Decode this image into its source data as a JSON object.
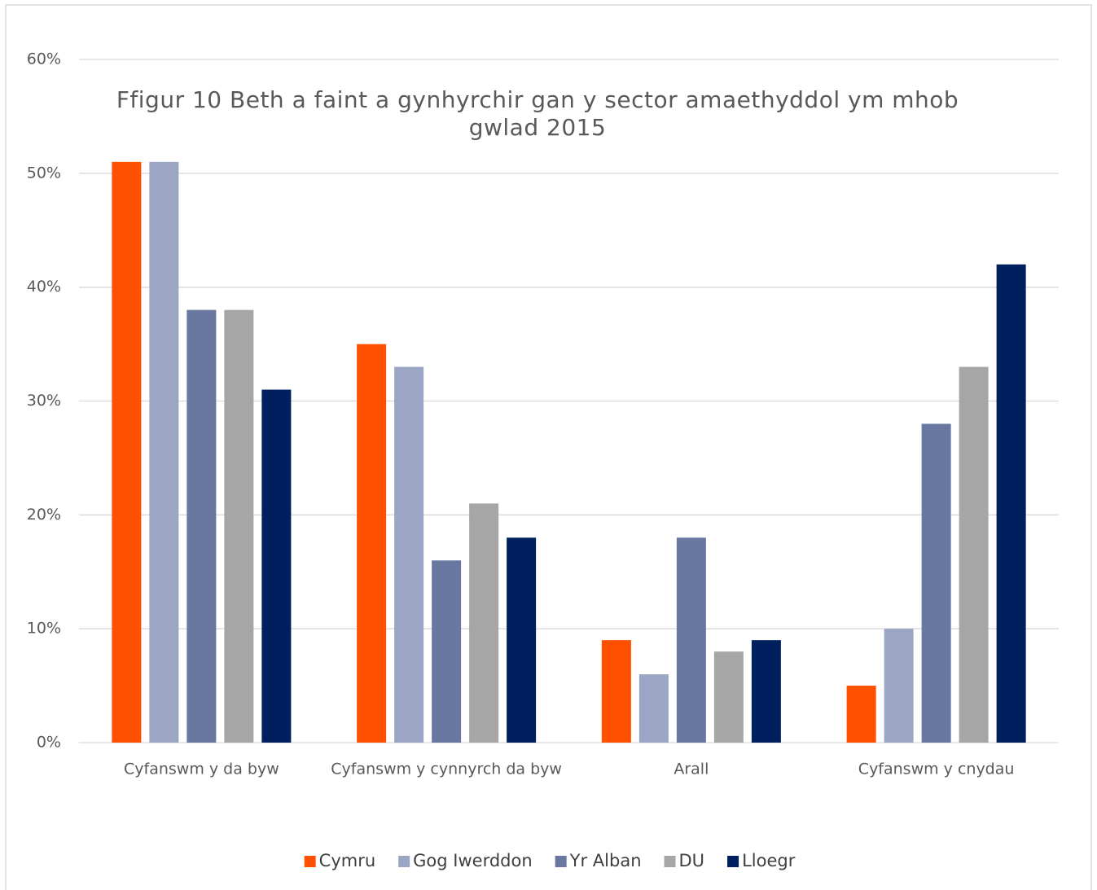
{
  "chart_data": {
    "type": "bar",
    "title": "Ffigur 10 Beth a faint a gynhyrchir gan y sector amaethyddol ym mhob gwlad 2015",
    "categories": [
      "Cyfanswm y da byw",
      "Cyfanswm y cynnyrch da byw",
      "Arall",
      "Cyfanswm y cnydau"
    ],
    "series": [
      {
        "name": "Cymru",
        "color": "#ff5000",
        "values": [
          51,
          35,
          9,
          5
        ]
      },
      {
        "name": "Gog Iwerddon",
        "color": "#9aa6c3",
        "values": [
          51,
          33,
          6,
          10
        ]
      },
      {
        "name": "Yr Alban",
        "color": "#6878a0",
        "values": [
          38,
          16,
          18,
          28
        ]
      },
      {
        "name": "DU",
        "color": "#a6a6a6",
        "values": [
          38,
          21,
          8,
          33
        ]
      },
      {
        "name": "Lloegr",
        "color": "#001f5f",
        "values": [
          31,
          18,
          9,
          42
        ]
      }
    ],
    "ylim": [
      0,
      60
    ],
    "yticks": [
      {
        "value": 0,
        "label": "0%"
      },
      {
        "value": 10,
        "label": "10%"
      },
      {
        "value": 20,
        "label": "20%"
      },
      {
        "value": 30,
        "label": "30%"
      },
      {
        "value": 40,
        "label": "40%"
      },
      {
        "value": 50,
        "label": "50%"
      },
      {
        "value": 60,
        "label": "60%"
      }
    ],
    "grid": true,
    "legend": "bottom"
  }
}
